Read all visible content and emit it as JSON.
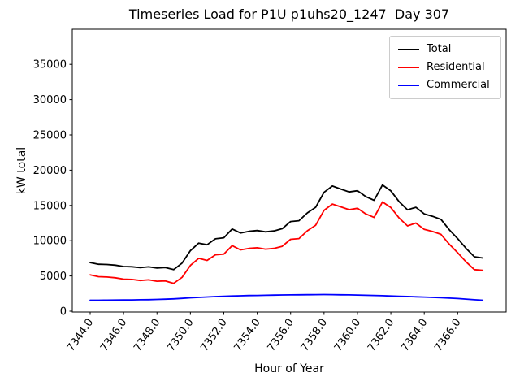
{
  "chart_data": {
    "type": "line",
    "title": "Timeseries Load for P1U p1uhs20_1247  Day 307",
    "xlabel": "Hour of Year",
    "ylabel": "kW total",
    "grid": false,
    "legend_position": "upper right",
    "xlim": [
      7342.9,
      7368.9
    ],
    "ylim": [
      0,
      40000
    ],
    "xticks": [
      7344,
      7346,
      7348,
      7350,
      7352,
      7354,
      7356,
      7358,
      7360,
      7362,
      7364,
      7366
    ],
    "xtick_labels": [
      "7344.0",
      "7346.0",
      "7348.0",
      "7350.0",
      "7352.0",
      "7354.0",
      "7356.0",
      "7358.0",
      "7360.0",
      "7362.0",
      "7364.0",
      "7366.0"
    ],
    "yticks": [
      0,
      5000,
      10000,
      15000,
      20000,
      25000,
      30000,
      35000
    ],
    "ytick_labels": [
      "0",
      "5000",
      "10000",
      "15000",
      "20000",
      "25000",
      "30000",
      "35000"
    ],
    "x": [
      7344,
      7344.5,
      7345,
      7345.5,
      7346,
      7346.5,
      7347,
      7347.5,
      7348,
      7348.5,
      7349,
      7349.5,
      7350,
      7350.5,
      7351,
      7351.5,
      7352,
      7352.5,
      7353,
      7353.5,
      7354,
      7354.5,
      7355,
      7355.5,
      7356,
      7356.5,
      7357,
      7357.5,
      7358,
      7358.5,
      7359,
      7359.5,
      7360,
      7360.5,
      7361,
      7361.5,
      7362,
      7362.5,
      7363,
      7363.5,
      7364,
      7364.5,
      7365,
      7365.5,
      7366,
      7366.5,
      7367,
      7367.5
    ],
    "series": [
      {
        "name": "Total",
        "color": "#000000",
        "values": [
          6900,
          6660,
          6620,
          6530,
          6340,
          6300,
          6170,
          6290,
          6120,
          6200,
          5900,
          6820,
          8600,
          9660,
          9420,
          10270,
          10420,
          11660,
          11090,
          11320,
          11440,
          11260,
          11380,
          11700,
          12720,
          12830,
          13940,
          14750,
          16860,
          17750,
          17330,
          16910,
          17090,
          16260,
          15730,
          17900,
          17060,
          15520,
          14380,
          14740,
          13800,
          13460,
          13020,
          11560,
          10300,
          8920,
          7720,
          7550
        ]
      },
      {
        "name": "Residential",
        "color": "#ff0000",
        "values": [
          5150,
          4900,
          4850,
          4750,
          4550,
          4500,
          4350,
          4450,
          4250,
          4300,
          3950,
          4800,
          6500,
          7500,
          7200,
          8000,
          8100,
          9300,
          8700,
          8900,
          9000,
          8800,
          8900,
          9200,
          10200,
          10300,
          11400,
          12200,
          14300,
          15200,
          14800,
          14400,
          14600,
          13800,
          13300,
          15500,
          14700,
          13200,
          12100,
          12500,
          11600,
          11300,
          10900,
          9500,
          8300,
          7000,
          5900,
          5800
        ]
      },
      {
        "name": "Commercial",
        "color": "#0000ff",
        "values": [
          1550,
          1560,
          1570,
          1580,
          1590,
          1600,
          1620,
          1640,
          1670,
          1700,
          1750,
          1820,
          1900,
          1960,
          2020,
          2070,
          2120,
          2160,
          2190,
          2220,
          2240,
          2260,
          2280,
          2300,
          2320,
          2330,
          2340,
          2350,
          2360,
          2350,
          2330,
          2310,
          2290,
          2260,
          2230,
          2200,
          2160,
          2120,
          2080,
          2040,
          2000,
          1960,
          1920,
          1860,
          1800,
          1720,
          1620,
          1550
        ]
      }
    ]
  }
}
